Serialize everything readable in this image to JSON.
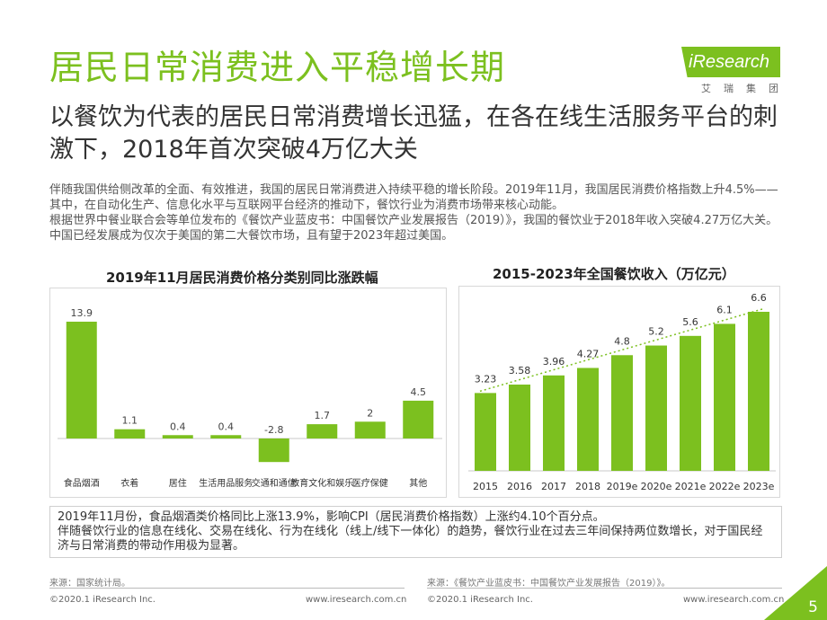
{
  "header": {
    "title": "居民日常消费进入平稳增长期",
    "subtitle": "以餐饮为代表的居民日常消费增长迅猛，在各在线生活服务平台的刺激下，2018年首次突破4万亿大关"
  },
  "logo": {
    "name": "iResearch",
    "sub": "艾瑞集团"
  },
  "intro": {
    "p1": "伴随我国供给侧改革的全面、有效推进，我国的居民日常消费进入持续平稳的增长阶段。2019年11月，我国居民消费价格指数上升4.5%——其中，在自动化生产、信息化水平与互联网平台经济的推动下，餐饮行业为消费市场带来核心动能。",
    "p2": "根据世界中餐业联合会等单位发布的《餐饮产业蓝皮书：中国餐饮产业发展报告（2019）》，我国的餐饮业于2018年收入突破4.27万亿大关。中国已经发展成为仅次于美国的第二大餐饮市场，且有望于2023年超过美国。"
  },
  "chart_data": [
    {
      "type": "bar",
      "title": "2019年11月居民消费价格分类别同比涨跌幅",
      "categories": [
        "食品烟酒",
        "衣着",
        "居住",
        "生活用品服务",
        "交通和通信",
        "教育文化和娱乐",
        "医疗保健",
        "其他"
      ],
      "values": [
        13.9,
        1.1,
        0.4,
        0.4,
        -2.8,
        1.7,
        2,
        4.5
      ],
      "value_labels": [
        "13.9",
        "1.1",
        "0.4",
        "0.4",
        "-2.8",
        "1.7",
        "2",
        "4.5"
      ],
      "color": "#7cc01f",
      "grid": false
    },
    {
      "type": "bar",
      "title": "2015-2023年全国餐饮收入（万亿元）",
      "categories": [
        "2015",
        "2016",
        "2017",
        "2018",
        "2019e",
        "2020e",
        "2021e",
        "2022e",
        "2023e"
      ],
      "values": [
        3.23,
        3.58,
        3.96,
        4.27,
        4.8,
        5.2,
        5.6,
        6.1,
        6.6
      ],
      "value_labels": [
        "3.23",
        "3.58",
        "3.96",
        "4.27",
        "4.8",
        "5.2",
        "5.6",
        "6.1",
        "6.6"
      ],
      "color": "#7cc01f",
      "trendline": "dotted",
      "grid": false
    }
  ],
  "note": {
    "p1": "2019年11月份，食品烟酒类价格同比上涨13.9%，影响CPI（居民消费价格指数）上涨约4.10个百分点。",
    "p2": "伴随餐饮行业的信息在线化、交易在线化、行为在线化（线上/线下一体化）的趋势，餐饮行业在过去三年间保持两位数增长，对于国民经济与日常消费的带动作用极为显著。"
  },
  "sources": {
    "left": "来源：国家统计局。",
    "right": "来源：《餐饮产业蓝皮书：中国餐饮产业发展报告（2019）》。"
  },
  "footer": {
    "copyright": "©2020.1 iResearch Inc.",
    "url": "www.iresearch.com.cn",
    "page": "5"
  },
  "colors": {
    "accent": "#7cc01f"
  }
}
